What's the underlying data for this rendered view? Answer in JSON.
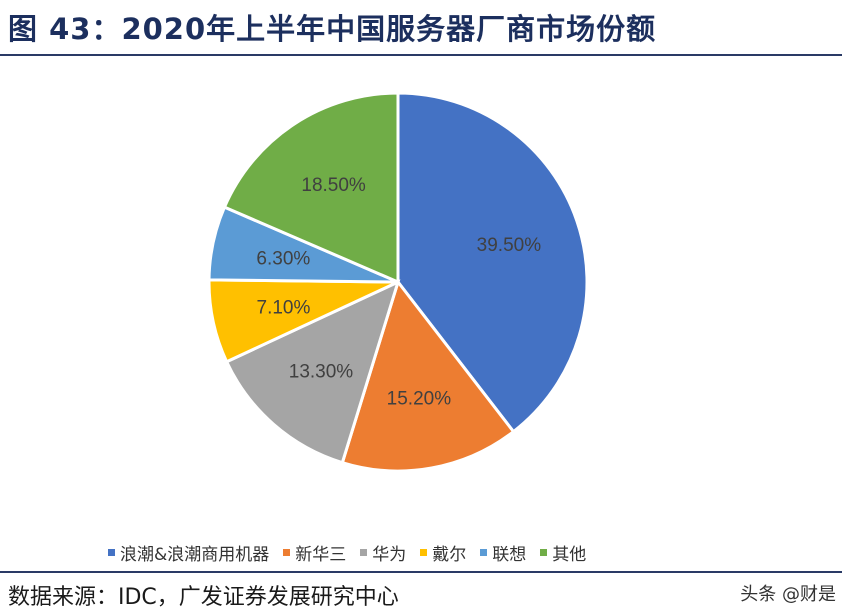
{
  "figure": {
    "title": "图 43：2020年上半年中国服务器厂商市场份额",
    "source": "数据来源：IDC，广发证券发展研究中心",
    "watermark": "头条 @财是"
  },
  "chart_data": {
    "type": "pie",
    "labels": [
      "浪潮&浪潮商用机器",
      "新华三",
      "华为",
      "戴尔",
      "联想",
      "其他"
    ],
    "values": [
      39.5,
      15.2,
      13.3,
      7.1,
      6.3,
      18.5
    ],
    "data_labels": [
      "39.50%",
      "15.20%",
      "13.30%",
      "7.10%",
      "6.30%",
      "18.50%"
    ],
    "colors": [
      "#4472C4",
      "#ED7D31",
      "#A5A5A5",
      "#FFC000",
      "#5B9BD5",
      "#70AD47"
    ],
    "legend_position": "bottom",
    "start_angle": "12 o'clock",
    "direction": "clockwise"
  }
}
